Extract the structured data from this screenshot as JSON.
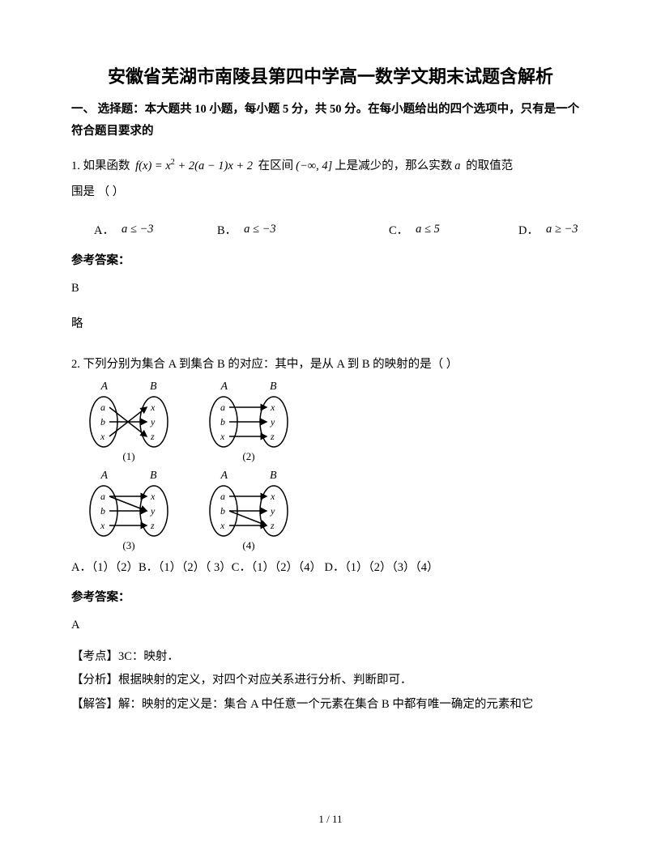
{
  "title": "安徽省芜湖市南陵县第四中学高一数学文期末试题含解析",
  "section_heading": "一、 选择题：本大题共 10 小题，每小题 5 分，共 50 分。在每小题给出的四个选项中，只有是一个符合题目要求的",
  "q1": {
    "prefix": "1. 如果函数",
    "formula": "f(x) = x² + 2(a − 1)x + 2",
    "mid1": "在区间",
    "interval": "(−∞, 4]",
    "mid2": "上是减少的，那么实数",
    "var": "a",
    "suffix": "的取值范",
    "line2": "围是    （      ）",
    "choices": {
      "A": "a ≤ −3",
      "B": "a ≤ −3",
      "C": "a ≤ 5",
      "D": "a ≥ −3"
    },
    "answer_label": "参考答案：",
    "answer": "B",
    "brief": "略"
  },
  "q2": {
    "stem": "2. 下列分别为集合 A 到集合 B 的对应：其中，是从 A 到 B 的映射的是（    ）",
    "setA_label": "A",
    "setB_label": "B",
    "elemsA": [
      "a",
      "b",
      "x"
    ],
    "elemsB": [
      "x",
      "y",
      "z"
    ],
    "pair_labels": [
      "(1)",
      "(2)",
      "(3)",
      "(4)"
    ],
    "mappings": {
      "1": [
        [
          0,
          2
        ],
        [
          1,
          1
        ],
        [
          2,
          0
        ]
      ],
      "2": [
        [
          0,
          0
        ],
        [
          1,
          1
        ],
        [
          2,
          2
        ]
      ],
      "3": [
        [
          0,
          0
        ],
        [
          0,
          1
        ],
        [
          1,
          1
        ],
        [
          2,
          2
        ]
      ],
      "4": [
        [
          0,
          0
        ],
        [
          1,
          1
        ],
        [
          1,
          2
        ],
        [
          2,
          2
        ]
      ]
    },
    "diagram_style": {
      "ellipse_rx": 17,
      "ellipse_ry": 31,
      "stroke": "#000000",
      "stroke_width": 1.5,
      "elem_font": "italic 12px Times New Roman",
      "gap_between": 34
    },
    "choices_line": "A．（1）（2）B．（1）（2）（ 3）C．（1）（2）（4）  D．（1）（2）（3）（4）",
    "answer_label": "参考答案：",
    "answer": "A",
    "explain": {
      "l1": "【考点】3C：映射．",
      "l2": "【分析】根据映射的定义，对四个对应关系进行分析、判断即可．",
      "l3": "【解答】解：映射的定义是：集合 A 中任意一个元素在集合 B 中都有唯一确定的元素和它"
    }
  },
  "footer": "1 / 11"
}
